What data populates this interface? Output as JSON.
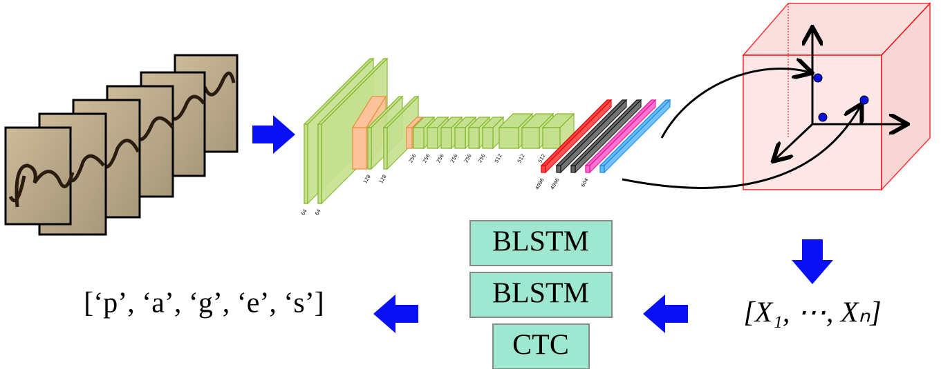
{
  "cnn_layer_labels": [
    "64",
    "64",
    "128",
    "128",
    "256",
    "256",
    "256",
    "256",
    "256",
    "256",
    "512",
    "512",
    "512",
    "4096",
    "4096",
    "604"
  ],
  "sequence_model": {
    "boxes": [
      "BLSTM",
      "BLSTM",
      "CTC"
    ]
  },
  "embedding_sequence": "[X₁, ⋯, Xₙ]",
  "output": "[‘p’, ‘a’, ‘g’, ‘e’, ‘s’]"
}
